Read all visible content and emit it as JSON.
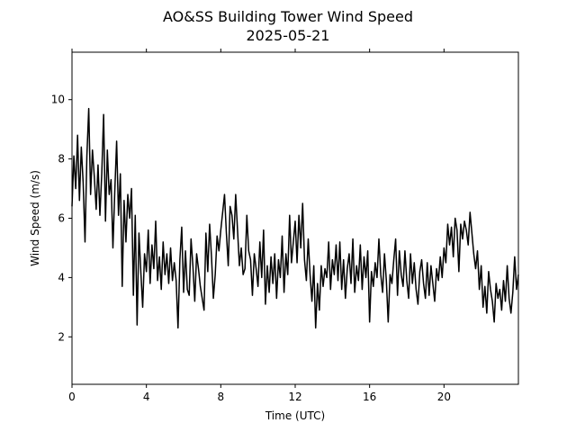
{
  "chart_data": {
    "type": "line",
    "title": "AO&SS Building Tower Wind Speed",
    "subtitle": "2025-05-21",
    "xlabel": "Time (UTC)",
    "ylabel": "Wind Speed (m/s)",
    "xlim": [
      0,
      24
    ],
    "ylim": [
      0.4,
      11.6
    ],
    "xticks": [
      0,
      4,
      8,
      12,
      16,
      20
    ],
    "yticks": [
      2,
      4,
      6,
      8,
      10
    ],
    "grid": false,
    "line_color": "#000000",
    "series": [
      {
        "x": [
          0.0,
          0.1,
          0.2,
          0.3,
          0.4,
          0.5,
          0.6,
          0.7,
          0.8,
          0.9,
          1.0,
          1.1,
          1.2,
          1.3,
          1.4,
          1.5,
          1.6,
          1.7,
          1.8,
          1.9,
          2.0,
          2.1,
          2.2,
          2.3,
          2.4,
          2.5,
          2.6,
          2.7,
          2.8,
          2.9,
          3.0,
          3.1,
          3.2,
          3.3,
          3.4,
          3.5,
          3.6,
          3.7,
          3.8,
          3.9,
          4.0,
          4.1,
          4.2,
          4.3,
          4.4,
          4.5,
          4.6,
          4.7,
          4.8,
          4.9,
          5.0,
          5.1,
          5.2,
          5.3,
          5.4,
          5.5,
          5.6,
          5.7,
          5.8,
          5.9,
          6.0,
          6.1,
          6.2,
          6.3,
          6.4,
          6.5,
          6.6,
          6.7,
          6.8,
          6.9,
          7.0,
          7.1,
          7.2,
          7.3,
          7.4,
          7.5,
          7.6,
          7.7,
          7.8,
          7.9,
          8.0,
          8.1,
          8.2,
          8.3,
          8.4,
          8.5,
          8.6,
          8.7,
          8.8,
          8.9,
          9.0,
          9.1,
          9.2,
          9.3,
          9.4,
          9.5,
          9.6,
          9.7,
          9.8,
          9.9,
          10.0,
          10.1,
          10.2,
          10.3,
          10.4,
          10.5,
          10.6,
          10.7,
          10.8,
          10.9,
          11.0,
          11.1,
          11.2,
          11.3,
          11.4,
          11.5,
          11.6,
          11.7,
          11.8,
          11.9,
          12.0,
          12.1,
          12.2,
          12.3,
          12.4,
          12.5,
          12.6,
          12.7,
          12.8,
          12.9,
          13.0,
          13.1,
          13.2,
          13.3,
          13.4,
          13.5,
          13.6,
          13.7,
          13.8,
          13.9,
          14.0,
          14.1,
          14.2,
          14.3,
          14.4,
          14.5,
          14.6,
          14.7,
          14.8,
          14.9,
          15.0,
          15.1,
          15.2,
          15.3,
          15.4,
          15.5,
          15.6,
          15.7,
          15.8,
          15.9,
          16.0,
          16.1,
          16.2,
          16.3,
          16.4,
          16.5,
          16.6,
          16.7,
          16.8,
          16.9,
          17.0,
          17.1,
          17.2,
          17.3,
          17.4,
          17.5,
          17.6,
          17.7,
          17.8,
          17.9,
          18.0,
          18.1,
          18.2,
          18.3,
          18.4,
          18.5,
          18.6,
          18.7,
          18.8,
          18.9,
          19.0,
          19.1,
          19.2,
          19.3,
          19.4,
          19.5,
          19.6,
          19.7,
          19.8,
          19.9,
          20.0,
          20.1,
          20.2,
          20.3,
          20.4,
          20.5,
          20.6,
          20.7,
          20.8,
          20.9,
          21.0,
          21.1,
          21.2,
          21.3,
          21.4,
          21.5,
          21.6,
          21.7,
          21.8,
          21.9,
          22.0,
          22.1,
          22.2,
          22.3,
          22.4,
          22.5,
          22.6,
          22.7,
          22.8,
          22.9,
          23.0,
          23.1,
          23.2,
          23.3,
          23.4,
          23.5,
          23.6,
          23.7,
          23.8,
          23.9,
          24.0
        ],
        "values": [
          6.4,
          8.1,
          7.0,
          8.8,
          6.6,
          8.4,
          7.2,
          5.2,
          8.1,
          9.7,
          6.8,
          8.3,
          7.4,
          6.3,
          7.8,
          6.1,
          7.5,
          9.5,
          5.9,
          8.3,
          6.8,
          7.3,
          5.0,
          6.9,
          8.6,
          6.1,
          7.5,
          3.7,
          6.6,
          5.2,
          6.8,
          6.0,
          7.0,
          3.4,
          6.1,
          2.4,
          5.5,
          4.2,
          3.0,
          4.8,
          4.2,
          5.6,
          3.8,
          5.1,
          4.3,
          5.9,
          3.9,
          4.7,
          3.6,
          5.2,
          4.1,
          4.8,
          3.8,
          5.0,
          3.9,
          4.5,
          3.9,
          2.3,
          4.6,
          5.7,
          3.5,
          4.9,
          3.6,
          3.4,
          5.3,
          4.4,
          3.2,
          4.8,
          4.3,
          3.7,
          3.3,
          2.9,
          5.5,
          4.2,
          5.8,
          4.7,
          3.3,
          4.1,
          5.4,
          4.9,
          5.6,
          6.2,
          6.8,
          5.5,
          4.4,
          6.4,
          6.1,
          5.3,
          6.8,
          5.6,
          4.4,
          5.0,
          4.1,
          4.3,
          6.1,
          4.9,
          4.6,
          3.4,
          4.8,
          4.3,
          3.7,
          5.2,
          4.0,
          5.6,
          3.1,
          4.4,
          3.5,
          4.7,
          3.8,
          4.8,
          3.3,
          4.6,
          4.0,
          5.4,
          3.5,
          4.8,
          4.1,
          6.1,
          4.5,
          5.2,
          5.9,
          4.5,
          6.1,
          5.0,
          6.5,
          4.6,
          3.9,
          5.3,
          4.1,
          3.2,
          4.4,
          2.3,
          3.8,
          2.9,
          4.4,
          3.7,
          4.3,
          4.0,
          5.2,
          3.6,
          4.6,
          4.1,
          5.1,
          3.9,
          5.2,
          3.6,
          4.6,
          3.3,
          4.3,
          4.8,
          3.8,
          5.3,
          3.5,
          4.4,
          3.9,
          5.1,
          3.6,
          4.7,
          4.0,
          4.9,
          2.5,
          4.2,
          3.7,
          4.5,
          4.0,
          5.3,
          4.1,
          3.5,
          4.8,
          3.9,
          2.5,
          4.1,
          3.8,
          4.6,
          5.3,
          3.4,
          4.9,
          4.1,
          3.7,
          4.9,
          3.9,
          3.3,
          4.8,
          3.8,
          4.5,
          3.6,
          3.1,
          4.2,
          4.6,
          3.8,
          3.3,
          4.5,
          3.4,
          4.4,
          3.8,
          3.2,
          4.3,
          3.9,
          4.7,
          4.0,
          5.0,
          4.5,
          5.8,
          5.1,
          5.7,
          4.7,
          6.0,
          5.6,
          4.2,
          5.8,
          5.3,
          5.9,
          5.6,
          5.1,
          6.2,
          5.5,
          4.8,
          4.3,
          4.9,
          3.6,
          4.4,
          3.0,
          3.7,
          2.8,
          4.2,
          3.6,
          3.2,
          2.5,
          3.8,
          3.3,
          3.6,
          2.9,
          3.9,
          3.2,
          4.4,
          3.3,
          2.8,
          3.5,
          4.7,
          3.6,
          4.1
        ]
      }
    ]
  }
}
